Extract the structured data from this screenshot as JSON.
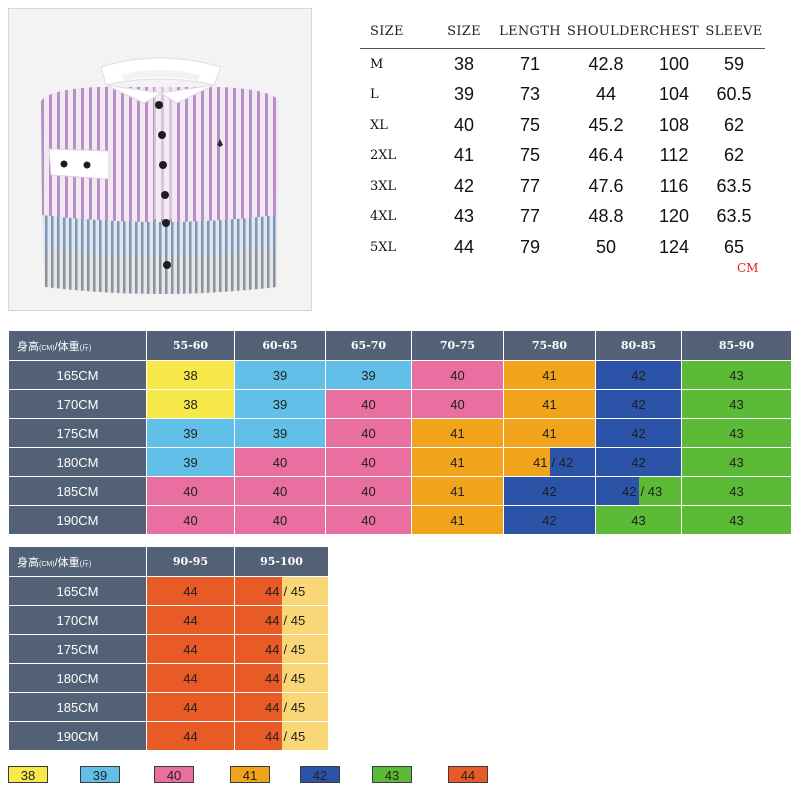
{
  "colors": {
    "38": "#f6e949",
    "39": "#62c0e8",
    "40": "#ea6fa1",
    "41": "#f0a31b",
    "42": "#2b54a9",
    "43": "#5bbb36",
    "44": "#e85a26",
    "45": "#fad776",
    "header": "#536176"
  },
  "spec_table": {
    "headers": [
      "SIZE",
      "SIZE",
      "LENGTH",
      "SHOULDER",
      "CHEST",
      "SLEEVE"
    ],
    "rows": [
      [
        "M",
        "38",
        "71",
        "42.8",
        "100",
        "59"
      ],
      [
        "L",
        "39",
        "73",
        "44",
        "104",
        "60.5"
      ],
      [
        "XL",
        "40",
        "75",
        "45.2",
        "108",
        "62"
      ],
      [
        "2XL",
        "41",
        "75",
        "46.4",
        "112",
        "62"
      ],
      [
        "3XL",
        "42",
        "77",
        "47.6",
        "116",
        "63.5"
      ],
      [
        "4XL",
        "43",
        "77",
        "48.8",
        "120",
        "63.5"
      ],
      [
        "5XL",
        "44",
        "79",
        "50",
        "124",
        "65"
      ]
    ],
    "unit": "CM"
  },
  "grid1": {
    "corner": {
      "height": "身高",
      "height_unit": "(CM)",
      "sep": "/",
      "weight": "体重",
      "weight_unit": "(斤)"
    },
    "columns": [
      "55-60",
      "60-65",
      "65-70",
      "70-75",
      "75-80",
      "80-85",
      "85-90"
    ],
    "rows": [
      {
        "label": "165CM",
        "cells": [
          [
            "38"
          ],
          [
            "39"
          ],
          [
            "39"
          ],
          [
            "40"
          ],
          [
            "41"
          ],
          [
            "42"
          ],
          [
            "43"
          ]
        ]
      },
      {
        "label": "170CM",
        "cells": [
          [
            "38"
          ],
          [
            "39"
          ],
          [
            "40"
          ],
          [
            "40"
          ],
          [
            "41"
          ],
          [
            "42"
          ],
          [
            "43"
          ]
        ]
      },
      {
        "label": "175CM",
        "cells": [
          [
            "39"
          ],
          [
            "39"
          ],
          [
            "40"
          ],
          [
            "41"
          ],
          [
            "41"
          ],
          [
            "42"
          ],
          [
            "43"
          ]
        ]
      },
      {
        "label": "180CM",
        "cells": [
          [
            "39"
          ],
          [
            "40"
          ],
          [
            "40"
          ],
          [
            "41"
          ],
          [
            "41",
            "42"
          ],
          [
            "42"
          ],
          [
            "43"
          ]
        ]
      },
      {
        "label": "185CM",
        "cells": [
          [
            "40"
          ],
          [
            "40"
          ],
          [
            "40"
          ],
          [
            "41"
          ],
          [
            "42"
          ],
          [
            "42",
            "43"
          ],
          [
            "43"
          ]
        ]
      },
      {
        "label": "190CM",
        "cells": [
          [
            "40"
          ],
          [
            "40"
          ],
          [
            "40"
          ],
          [
            "41"
          ],
          [
            "42"
          ],
          [
            "43"
          ],
          [
            "43"
          ]
        ]
      }
    ]
  },
  "grid2": {
    "corner": {
      "height": "身高",
      "height_unit": "(CM)",
      "sep": "/",
      "weight": "体重",
      "weight_unit": "(斤)"
    },
    "columns": [
      "90-95",
      "95-100"
    ],
    "rows": [
      {
        "label": "165CM",
        "cells": [
          [
            "44"
          ],
          [
            "44",
            "45"
          ]
        ]
      },
      {
        "label": "170CM",
        "cells": [
          [
            "44"
          ],
          [
            "44",
            "45"
          ]
        ]
      },
      {
        "label": "175CM",
        "cells": [
          [
            "44"
          ],
          [
            "44",
            "45"
          ]
        ]
      },
      {
        "label": "180CM",
        "cells": [
          [
            "44"
          ],
          [
            "44",
            "45"
          ]
        ]
      },
      {
        "label": "185CM",
        "cells": [
          [
            "44"
          ],
          [
            "44",
            "45"
          ]
        ]
      },
      {
        "label": "190CM",
        "cells": [
          [
            "44"
          ],
          [
            "44",
            "45"
          ]
        ]
      }
    ]
  },
  "legend": [
    "38",
    "39",
    "40",
    "41",
    "42",
    "43",
    "44"
  ]
}
